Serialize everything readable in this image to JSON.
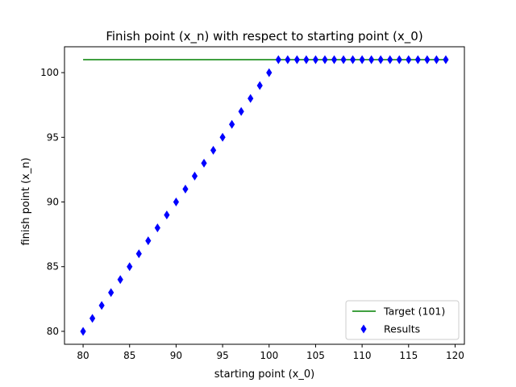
{
  "chart_data": {
    "type": "scatter",
    "title": "Finish point (x_n) with respect to starting point (x_0)",
    "xlabel": "starting point (x_0)",
    "ylabel": "finish point (x_n)",
    "xlim": [
      78,
      121
    ],
    "ylim": [
      79,
      102
    ],
    "xticks": [
      80,
      85,
      90,
      95,
      100,
      105,
      110,
      115,
      120
    ],
    "yticks": [
      80,
      85,
      90,
      95,
      100
    ],
    "grid": false,
    "legend_position": "lower-right",
    "series": [
      {
        "name": "Target (101)",
        "kind": "line",
        "color": "#008000",
        "x": [
          80,
          119
        ],
        "y": [
          101,
          101
        ]
      },
      {
        "name": "Results",
        "kind": "scatter",
        "marker": "thin-diamond",
        "color": "#0000ff",
        "x": [
          80,
          81,
          82,
          83,
          84,
          85,
          86,
          87,
          88,
          89,
          90,
          91,
          92,
          93,
          94,
          95,
          96,
          97,
          98,
          99,
          100,
          101,
          102,
          103,
          104,
          105,
          106,
          107,
          108,
          109,
          110,
          111,
          112,
          113,
          114,
          115,
          116,
          117,
          118,
          119
        ],
        "y": [
          80,
          81,
          82,
          83,
          84,
          85,
          86,
          87,
          88,
          89,
          90,
          91,
          92,
          93,
          94,
          95,
          96,
          97,
          98,
          99,
          100,
          101,
          101,
          101,
          101,
          101,
          101,
          101,
          101,
          101,
          101,
          101,
          101,
          101,
          101,
          101,
          101,
          101,
          101,
          101
        ]
      }
    ]
  }
}
